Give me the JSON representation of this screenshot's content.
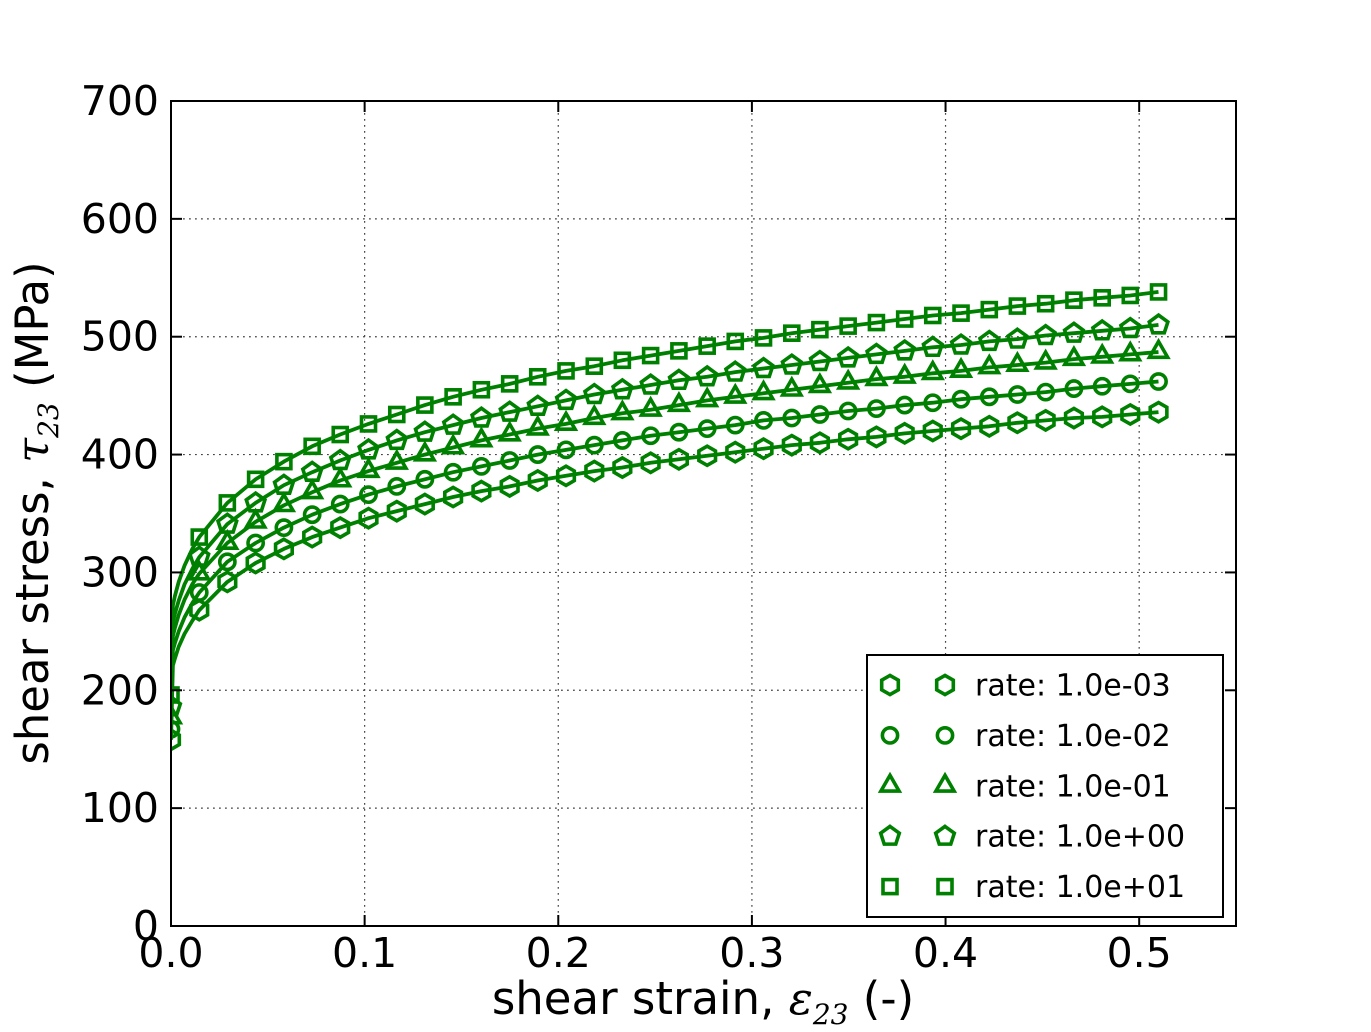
{
  "chart_data": {
    "type": "line",
    "title": "",
    "xlabel": "shear strain, ε23 (-)",
    "ylabel": "shear stress, τ23 (MPa)",
    "labels": {
      "xlabel_prefix": "shear strain, ",
      "xlabel_symbol": "ε",
      "xlabel_sub": "23",
      "xlabel_suffix": " (-)",
      "ylabel_prefix": "shear stress, ",
      "ylabel_symbol": "τ",
      "ylabel_sub": "23",
      "ylabel_suffix": " (MPa)"
    },
    "xlim": [
      0,
      0.55
    ],
    "ylim": [
      0,
      700
    ],
    "xticks": [
      0.0,
      0.1,
      0.2,
      0.3,
      0.4,
      0.5
    ],
    "xtick_labels": [
      "0.0",
      "0.1",
      "0.2",
      "0.3",
      "0.4",
      "0.5"
    ],
    "yticks": [
      0,
      100,
      200,
      300,
      400,
      500,
      600,
      700
    ],
    "ytick_labels": [
      "0",
      "100",
      "200",
      "300",
      "400",
      "500",
      "600",
      "700"
    ],
    "grid": "dotted",
    "grid_color": "#444444",
    "axis_color": "#000000",
    "series_color": "#008000",
    "legend_position": "lower right",
    "x": [
      0.0,
      0.0146,
      0.0291,
      0.0437,
      0.0583,
      0.0729,
      0.0874,
      0.102,
      0.1166,
      0.1311,
      0.1457,
      0.1603,
      0.1749,
      0.1894,
      0.204,
      0.2186,
      0.2331,
      0.2477,
      0.2623,
      0.2769,
      0.2914,
      0.306,
      0.3206,
      0.3351,
      0.3497,
      0.3643,
      0.3789,
      0.3934,
      0.408,
      0.4226,
      0.4371,
      0.4517,
      0.4663,
      0.4809,
      0.4954,
      0.51
    ],
    "knee_x": [
      0.001,
      0.002,
      0.004,
      0.007,
      0.011
    ],
    "series": [
      {
        "name": "rate: 1.0e-03",
        "marker": "hexagon",
        "values": [
          158,
          268,
          292,
          308,
          320,
          330,
          338,
          346,
          352,
          358,
          364,
          369,
          373,
          378,
          382,
          386,
          389,
          393,
          396,
          399,
          402,
          405,
          408,
          410,
          413,
          415,
          418,
          420,
          422,
          424,
          427,
          429,
          431,
          432,
          434,
          436
        ],
        "knee_values": [
          221,
          227,
          237,
          248,
          259
        ]
      },
      {
        "name": "rate: 1.0e-02",
        "marker": "circle",
        "values": [
          167,
          283,
          309,
          325,
          338,
          349,
          358,
          366,
          373,
          379,
          385,
          390,
          395,
          400,
          404,
          408,
          412,
          416,
          419,
          422,
          425,
          429,
          431,
          434,
          437,
          439,
          442,
          444,
          447,
          449,
          451,
          453,
          456,
          458,
          460,
          462
        ],
        "knee_values": [
          234,
          240,
          250,
          262,
          274
        ]
      },
      {
        "name": "rate: 1.0e-01",
        "marker": "triangle",
        "values": [
          177,
          299,
          325,
          343,
          357,
          368,
          378,
          386,
          393,
          400,
          406,
          412,
          417,
          422,
          426,
          431,
          435,
          438,
          442,
          446,
          449,
          452,
          455,
          458,
          461,
          464,
          466,
          469,
          471,
          474,
          476,
          478,
          481,
          483,
          485,
          487
        ],
        "knee_values": [
          246,
          253,
          264,
          277,
          290
        ]
      },
      {
        "name": "rate: 1.0e+00",
        "marker": "pentagon",
        "values": [
          186,
          313,
          341,
          359,
          374,
          385,
          395,
          404,
          412,
          419,
          425,
          431,
          436,
          441,
          446,
          451,
          455,
          459,
          463,
          466,
          470,
          473,
          476,
          479,
          482,
          485,
          488,
          491,
          493,
          496,
          498,
          501,
          503,
          505,
          507,
          510
        ],
        "knee_values": [
          258,
          265,
          276,
          290,
          303
        ]
      },
      {
        "name": "rate: 1.0e+01",
        "marker": "square",
        "values": [
          196,
          330,
          359,
          379,
          394,
          407,
          417,
          426,
          434,
          442,
          449,
          455,
          460,
          466,
          471,
          475,
          480,
          484,
          488,
          492,
          496,
          499,
          503,
          506,
          509,
          512,
          515,
          518,
          520,
          523,
          526,
          528,
          531,
          533,
          535,
          538
        ],
        "knee_values": [
          272,
          280,
          292,
          306,
          320
        ]
      }
    ]
  }
}
